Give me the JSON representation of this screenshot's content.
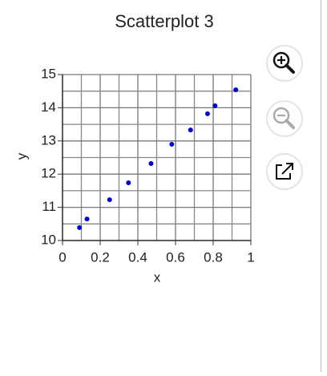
{
  "chart_data": {
    "type": "scatter",
    "title": "Scatterplot 3",
    "x_label": "x",
    "y_label": "y",
    "x": [
      0.09,
      0.13,
      0.25,
      0.35,
      0.47,
      0.58,
      0.68,
      0.77,
      0.81,
      0.92
    ],
    "y": [
      10.39,
      10.65,
      11.23,
      11.74,
      12.32,
      12.9,
      13.33,
      13.82,
      14.06,
      14.54
    ],
    "color": "#0000dd",
    "xlim": [
      0,
      1
    ],
    "xticks": [
      0,
      0.2,
      0.4,
      0.6,
      0.8,
      1
    ],
    "ylim": [
      10,
      15
    ],
    "yticks": [
      10,
      11,
      12,
      13,
      14,
      15
    ],
    "grid": true
  }
}
